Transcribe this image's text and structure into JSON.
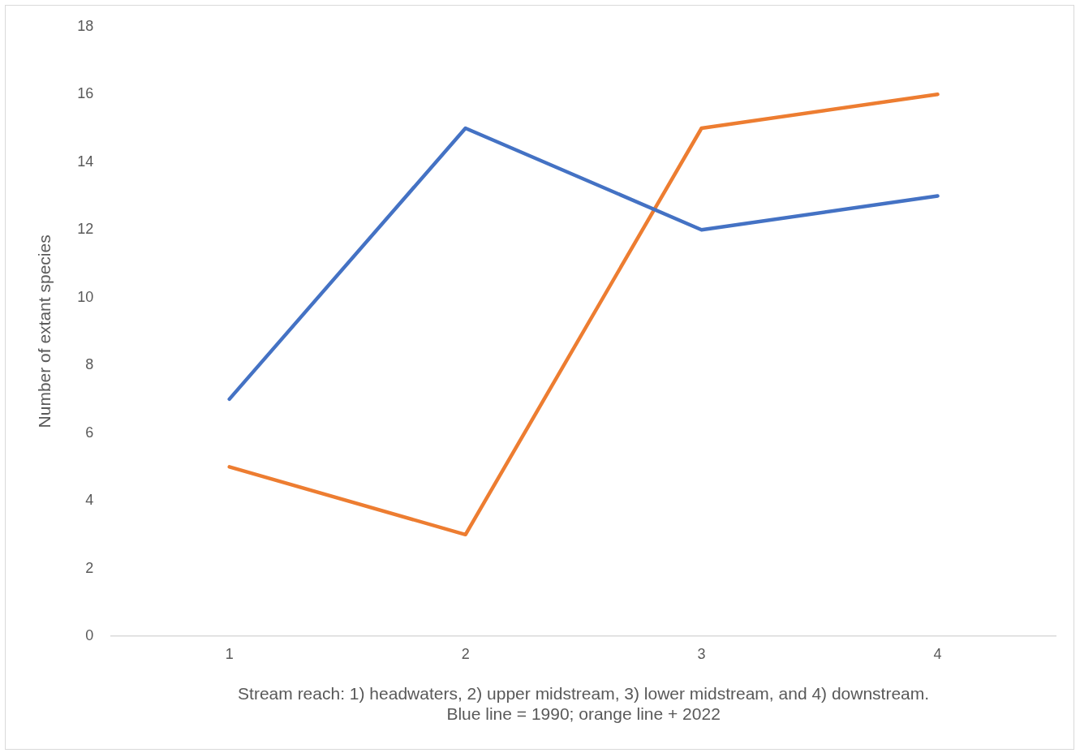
{
  "chart_data": {
    "type": "line",
    "categories": [
      "1",
      "2",
      "3",
      "4"
    ],
    "series": [
      {
        "color": "#4472c4",
        "values": [
          7,
          15,
          12,
          13
        ]
      },
      {
        "color": "#ed7d31",
        "values": [
          5,
          3,
          15,
          16
        ]
      }
    ],
    "ylim": [
      0,
      18
    ],
    "yticks": [
      0,
      2,
      4,
      6,
      8,
      10,
      12,
      14,
      16,
      18
    ],
    "ylabel": "Number of extant species",
    "xlabel": "Stream reach: 1) headwaters, 2) upper midstream, 3) lower midstream, and 4) downstream.\nBlue line = 1990; orange line + 2022",
    "marker": "none",
    "legend": false
  }
}
